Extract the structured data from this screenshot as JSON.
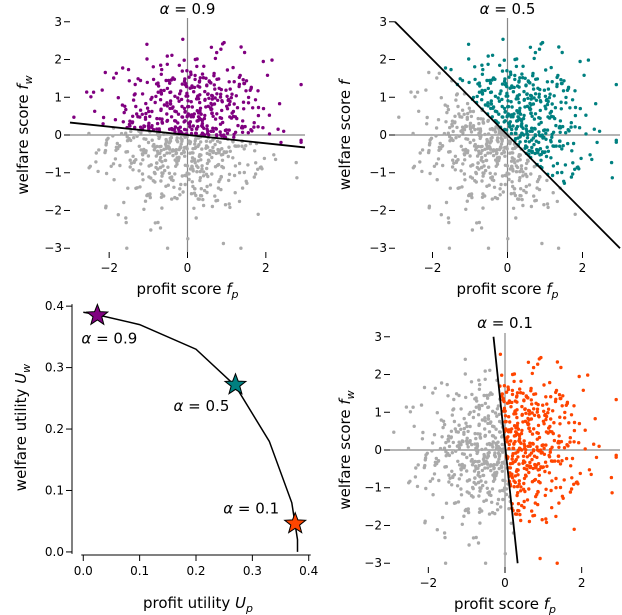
{
  "chart_data": [
    {
      "type": "scatter",
      "panel": "top-left",
      "title": "α = 0.9",
      "xlabel": "profit score f_p",
      "ylabel": "welfare score f_w",
      "xlim": [
        -3,
        3
      ],
      "ylim": [
        -3.1,
        3.1
      ],
      "xticks": [
        -2,
        0,
        2
      ],
      "yticks": [
        -3,
        -2,
        -1,
        0,
        1,
        2,
        3
      ],
      "highlight_color": "#800080",
      "other_color": "#aaaaaa",
      "boundary_line": {
        "x": [
          -3,
          3
        ],
        "y": [
          0.33,
          -0.33
        ]
      },
      "points": "sampled cloud of ~800 points, N(0,1) per axis; points above the boundary line highlighted"
    },
    {
      "type": "scatter",
      "panel": "top-right",
      "title": "α = 0.5",
      "xlabel": "profit score f_p",
      "ylabel": "welfare score f",
      "xlim": [
        -3,
        3
      ],
      "ylim": [
        -3.1,
        3.1
      ],
      "xticks": [
        -2,
        0,
        2
      ],
      "yticks": [
        -3,
        -2,
        -1,
        0,
        1,
        2,
        3
      ],
      "highlight_color": "#008080",
      "other_color": "#aaaaaa",
      "boundary_line": {
        "x": [
          -3,
          3
        ],
        "y": [
          3,
          -3
        ]
      },
      "points": "sampled cloud of ~800 points; points above the diagonal highlighted"
    },
    {
      "type": "line",
      "panel": "bottom-left",
      "xlabel": "profit utility U_p",
      "ylabel": "welfare utility U_w",
      "xlim": [
        -0.02,
        0.42
      ],
      "ylim": [
        -0.005,
        0.41
      ],
      "xticks": [
        0.0,
        0.1,
        0.2,
        0.3,
        0.4
      ],
      "yticks": [
        0.0,
        0.1,
        0.2,
        0.3,
        0.4
      ],
      "curve": {
        "x": [
          0.0,
          0.02,
          0.1,
          0.2,
          0.27,
          0.33,
          0.37,
          0.38,
          0.38
        ],
        "y": [
          0.39,
          0.387,
          0.37,
          0.33,
          0.27,
          0.18,
          0.08,
          0.02,
          0.0
        ]
      },
      "markers": [
        {
          "label": "α = 0.9",
          "x": 0.025,
          "y": 0.385,
          "color": "#800080"
        },
        {
          "label": "α = 0.5",
          "x": 0.27,
          "y": 0.272,
          "color": "#008080"
        },
        {
          "label": "α = 0.1",
          "x": 0.376,
          "y": 0.046,
          "color": "#ff4500"
        }
      ]
    },
    {
      "type": "scatter",
      "panel": "bottom-right",
      "title": "α = 0.1",
      "xlabel": "profit score f_p",
      "ylabel": "welfare score f_w",
      "xlim": [
        -3,
        3
      ],
      "ylim": [
        -3.1,
        3.1
      ],
      "xticks": [
        -2,
        0,
        2
      ],
      "yticks": [
        -3,
        -2,
        -1,
        0,
        1,
        2,
        3
      ],
      "highlight_color": "#ff4500",
      "other_color": "#aaaaaa",
      "boundary_line": {
        "x": [
          -0.3,
          0.33
        ],
        "y": [
          3,
          -3
        ]
      },
      "points": "sampled cloud of ~800 points; points right of the boundary line highlighted"
    }
  ]
}
